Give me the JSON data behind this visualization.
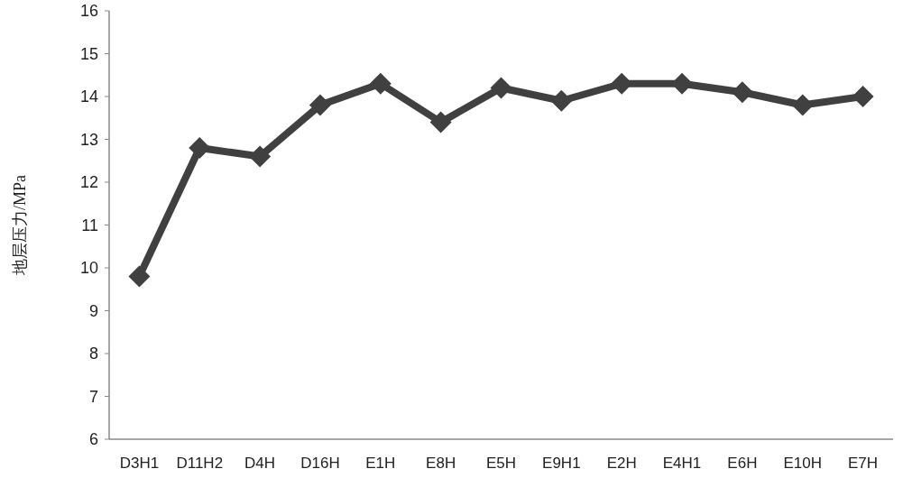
{
  "chart_data": {
    "type": "line",
    "ylabel": "地层压力/MPa",
    "categories": [
      "D3H1",
      "D11H2",
      "D4H",
      "D16H",
      "E1H",
      "E8H",
      "E5H",
      "E9H1",
      "E2H",
      "E4H1",
      "E6H",
      "E10H",
      "E7H"
    ],
    "values": [
      9.8,
      12.8,
      12.6,
      13.8,
      14.3,
      13.4,
      14.2,
      13.9,
      14.3,
      14.3,
      14.1,
      13.8,
      14.0
    ],
    "color": "#404040",
    "marker": "diamond",
    "ylim": [
      6,
      16
    ],
    "yticks": [
      6,
      7,
      8,
      9,
      10,
      11,
      12,
      13,
      14,
      15,
      16
    ]
  }
}
